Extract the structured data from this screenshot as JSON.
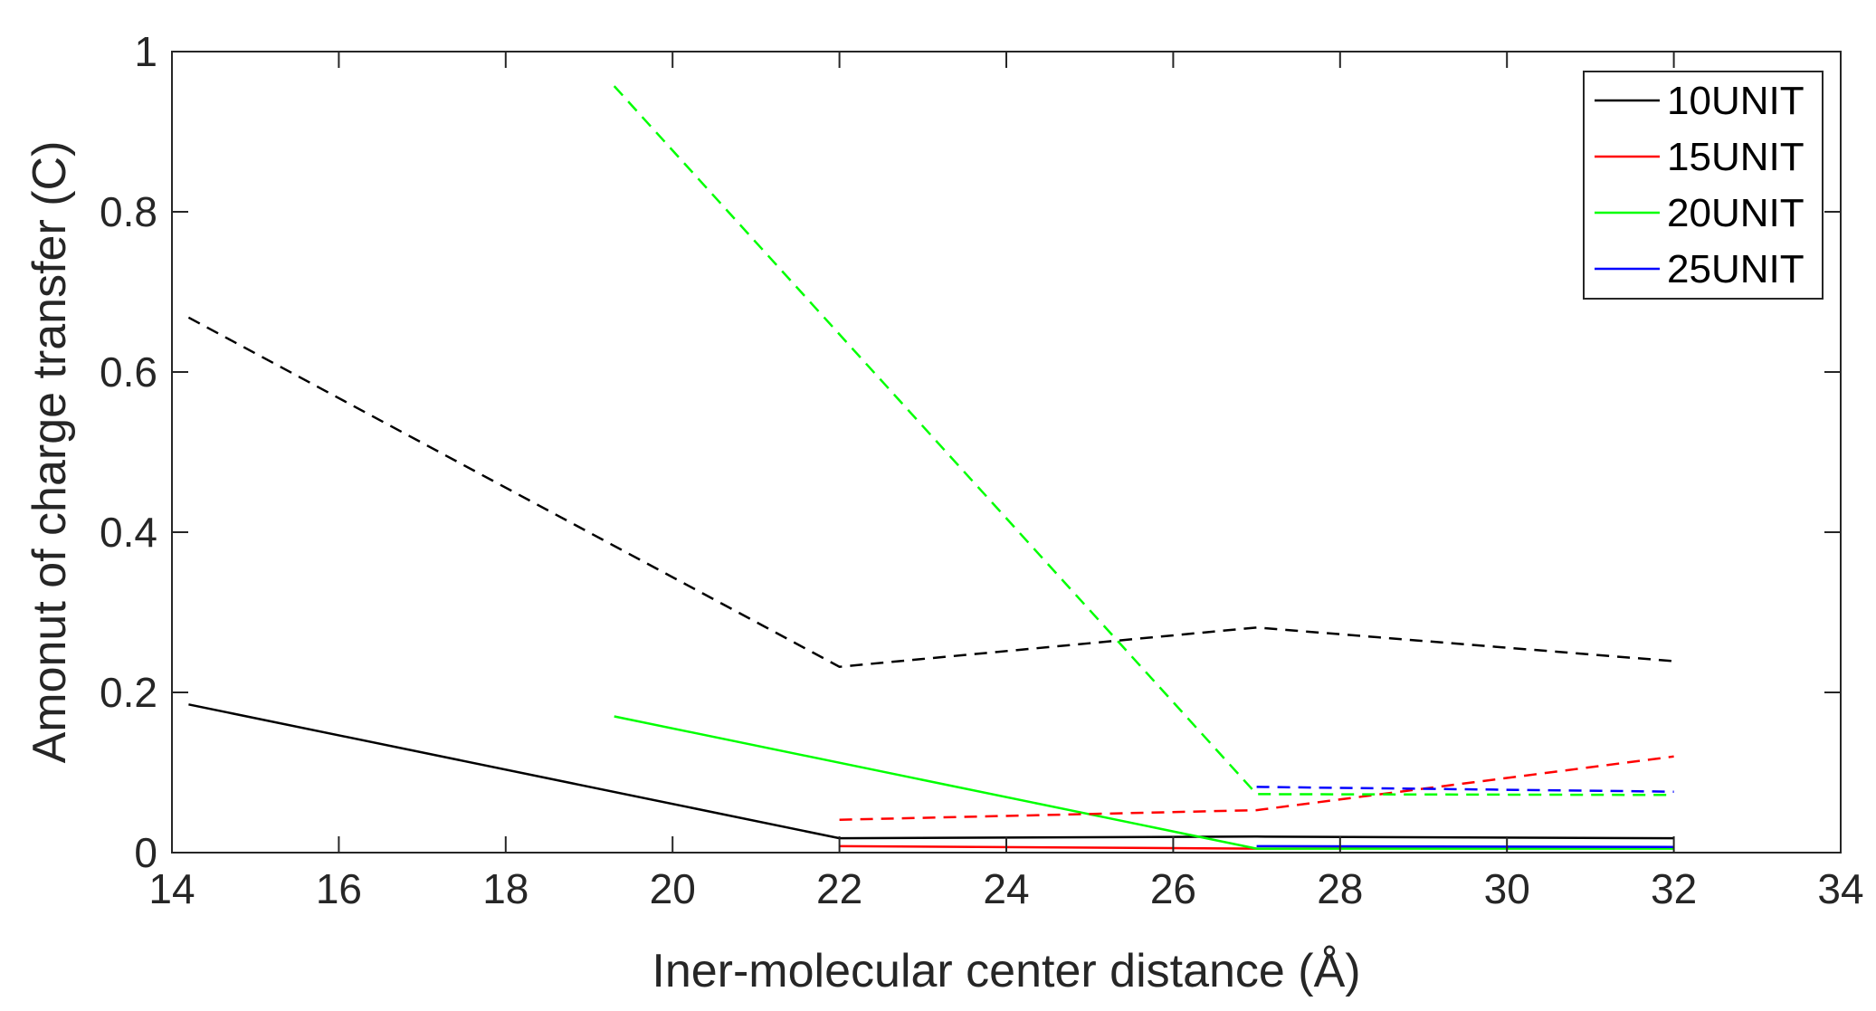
{
  "chart_data": {
    "type": "line",
    "title": "",
    "xlabel": "Iner-molecular center distance (Å)",
    "ylabel": "Amonut of charge transfer (C)",
    "xlim": [
      14,
      34
    ],
    "ylim": [
      0,
      1
    ],
    "xticks": [
      "14",
      "16",
      "18",
      "20",
      "22",
      "24",
      "26",
      "28",
      "30",
      "32",
      "34"
    ],
    "yticks": [
      "0",
      "0.2",
      "0.4",
      "0.6",
      "0.8",
      "1"
    ],
    "grid": false,
    "legend": {
      "position": "top-right",
      "entries": [
        "10UNIT",
        "15UNIT",
        "20UNIT",
        "25UNIT"
      ]
    },
    "series": [
      {
        "name": "10UNIT",
        "color": "#000000",
        "style": "solid",
        "x": [
          14.2,
          22,
          27,
          32
        ],
        "y": [
          0.185,
          0.018,
          0.02,
          0.018
        ]
      },
      {
        "name": "15UNIT",
        "color": "#ff0000",
        "style": "solid",
        "x": [
          22,
          27,
          32
        ],
        "y": [
          0.008,
          0.005,
          0.007
        ]
      },
      {
        "name": "20UNIT",
        "color": "#00ff00",
        "style": "solid",
        "x": [
          19.3,
          27,
          32
        ],
        "y": [
          0.17,
          0.005,
          0.005
        ]
      },
      {
        "name": "25UNIT",
        "color": "#0000ff",
        "style": "solid",
        "x": [
          27,
          32
        ],
        "y": [
          0.008,
          0.007
        ]
      },
      {
        "name": "",
        "color": "#000000",
        "style": "dashed",
        "x": [
          14.2,
          22,
          27,
          32
        ],
        "y": [
          0.668,
          0.232,
          0.281,
          0.239
        ]
      },
      {
        "name": "",
        "color": "#ff0000",
        "style": "dashed",
        "x": [
          22,
          27,
          32
        ],
        "y": [
          0.041,
          0.053,
          0.12
        ]
      },
      {
        "name": "",
        "color": "#00ff00",
        "style": "dashed",
        "x": [
          19.3,
          27,
          32
        ],
        "y": [
          0.957,
          0.073,
          0.072
        ]
      },
      {
        "name": "",
        "color": "#0000ff",
        "style": "dashed",
        "x": [
          27,
          32
        ],
        "y": [
          0.082,
          0.076
        ]
      }
    ]
  }
}
